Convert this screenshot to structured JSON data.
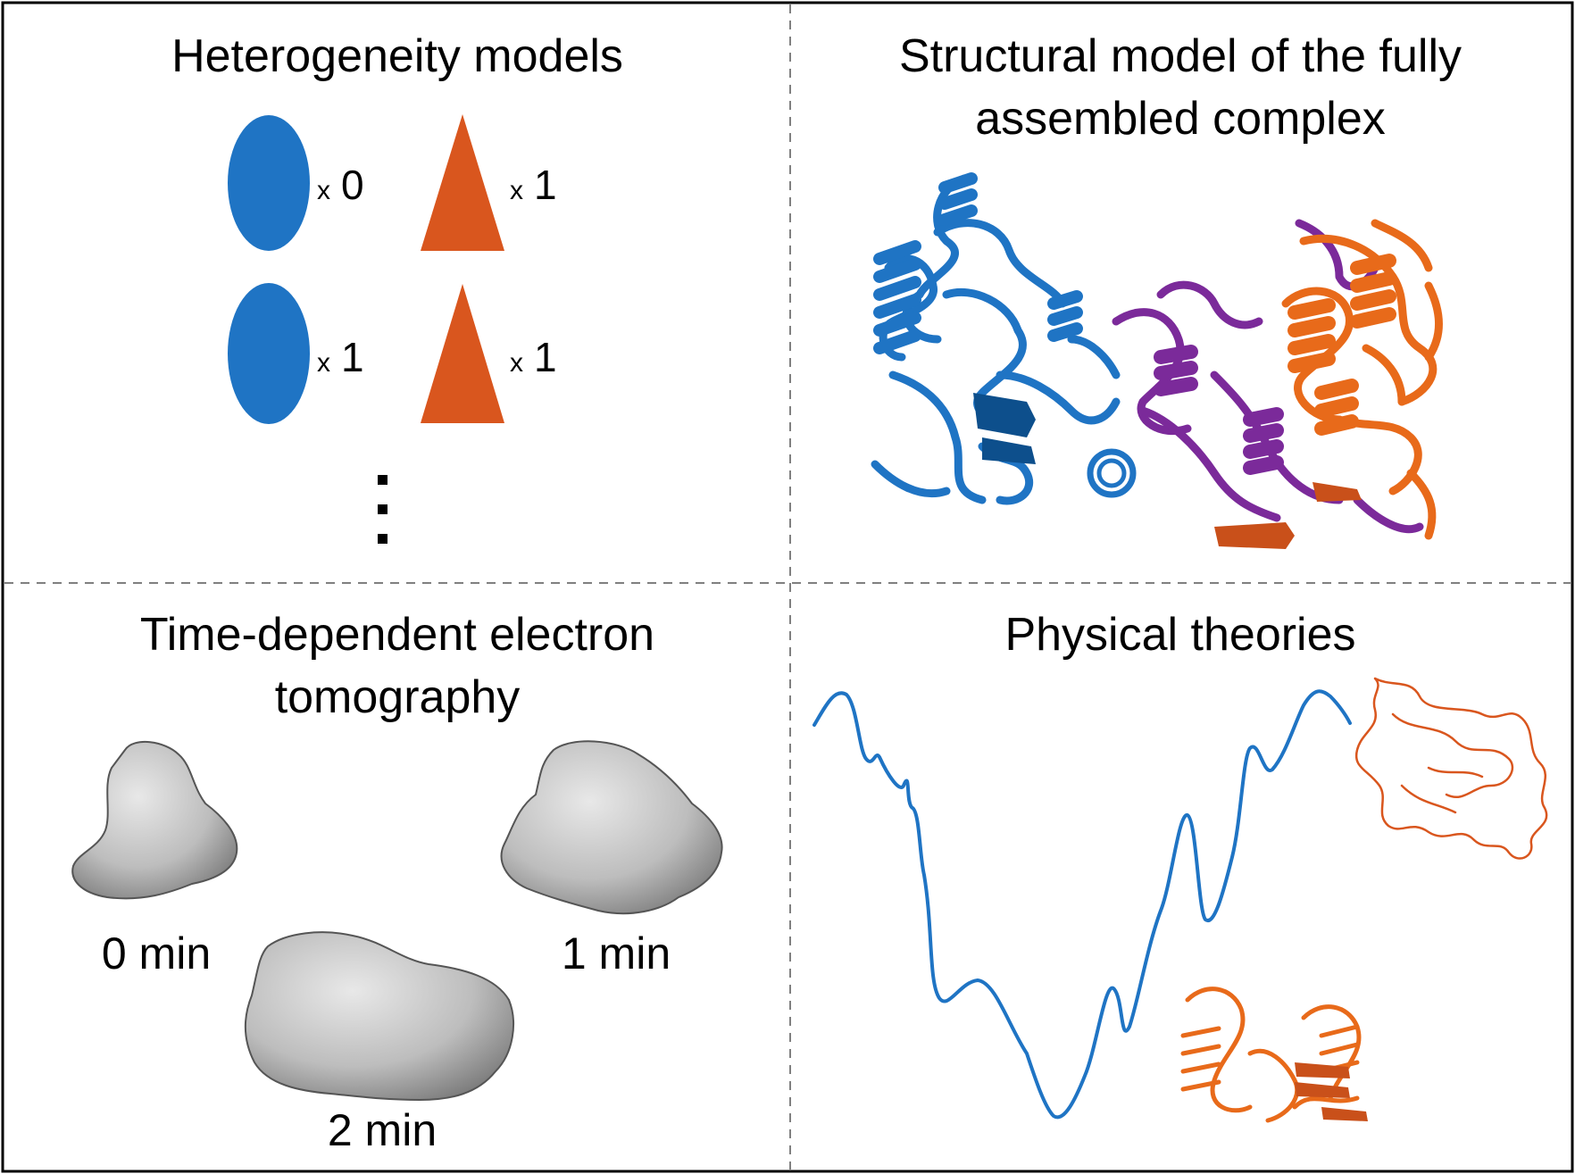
{
  "panels": {
    "heterogeneity": {
      "title": "Heterogeneity models",
      "rows": [
        {
          "ellipse_count": "0",
          "triangle_count": "1"
        },
        {
          "ellipse_count": "1",
          "triangle_count": "1"
        }
      ],
      "multiplier_symbol": "x",
      "ellipsis": "⋮"
    },
    "structural": {
      "title": "Structural model of the fully assembled complex",
      "title_line1": "Structural model of the fully",
      "title_line2": "assembled complex"
    },
    "tomography": {
      "title": "Time-dependent electron tomography",
      "title_line1": "Time-dependent electron",
      "title_line2": "tomography",
      "time_labels": [
        "0 min",
        "1 min",
        "2 min"
      ]
    },
    "physical": {
      "title": "Physical theories"
    }
  },
  "colors": {
    "blue": "#1f74c4",
    "orange": "#d9561e",
    "purple": "#7b2a9a",
    "dark_blue": "#0d4f8c",
    "gray": "#bdbdbd",
    "border": "#000000",
    "divider": "#808080"
  }
}
